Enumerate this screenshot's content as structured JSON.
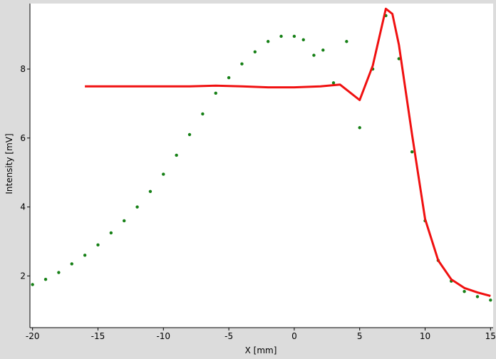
{
  "chart_data": {
    "type": "scatter",
    "title": "",
    "xlabel": "X [mm]",
    "ylabel": "Intensity [mV]",
    "xlim": [
      -20.2,
      15.2
    ],
    "ylim": [
      0.5,
      9.9
    ],
    "x_ticks": [
      -20,
      -15,
      -10,
      -5,
      0,
      5,
      10,
      15
    ],
    "y_ticks": [
      2,
      4,
      6,
      8
    ],
    "grid": false,
    "legend": "none",
    "series": [
      {
        "color": "#168016",
        "style": "dotted",
        "points": [
          [
            -20.0,
            1.75
          ],
          [
            -19.0,
            1.9
          ],
          [
            -18.0,
            2.1
          ],
          [
            -17.0,
            2.35
          ],
          [
            -16.0,
            2.6
          ],
          [
            -15.0,
            2.9
          ],
          [
            -14.0,
            3.25
          ],
          [
            -13.0,
            3.6
          ],
          [
            -12.0,
            4.0
          ],
          [
            -11.0,
            4.45
          ],
          [
            -10.0,
            4.95
          ],
          [
            -9.0,
            5.5
          ],
          [
            -8.0,
            6.1
          ],
          [
            -7.0,
            6.7
          ],
          [
            -6.0,
            7.3
          ],
          [
            -5.0,
            7.75
          ],
          [
            -4.0,
            8.15
          ],
          [
            -3.0,
            8.5
          ],
          [
            -2.0,
            8.8
          ],
          [
            -1.0,
            8.95
          ],
          [
            0.0,
            8.95
          ],
          [
            0.7,
            8.85
          ],
          [
            1.5,
            8.4
          ],
          [
            2.2,
            8.55
          ],
          [
            3.0,
            7.6
          ],
          [
            4.0,
            8.8
          ],
          [
            5.0,
            6.3
          ],
          [
            6.0,
            8.0
          ],
          [
            7.0,
            9.55
          ],
          [
            8.0,
            8.3
          ],
          [
            9.0,
            5.6
          ],
          [
            10.0,
            3.6
          ],
          [
            11.0,
            2.45
          ],
          [
            12.0,
            1.85
          ],
          [
            13.0,
            1.55
          ],
          [
            14.0,
            1.4
          ],
          [
            15.0,
            1.3
          ]
        ]
      },
      {
        "color": "#f01010",
        "style": "solid",
        "points": [
          [
            -16.0,
            7.5
          ],
          [
            -12.0,
            7.5
          ],
          [
            -8.0,
            7.5
          ],
          [
            -6.0,
            7.52
          ],
          [
            -4.0,
            7.5
          ],
          [
            -2.0,
            7.47
          ],
          [
            0.0,
            7.47
          ],
          [
            2.0,
            7.5
          ],
          [
            3.5,
            7.55
          ],
          [
            5.0,
            7.1
          ],
          [
            6.0,
            8.1
          ],
          [
            7.0,
            9.75
          ],
          [
            7.5,
            9.6
          ],
          [
            8.0,
            8.7
          ],
          [
            9.0,
            6.1
          ],
          [
            10.0,
            3.65
          ],
          [
            11.0,
            2.45
          ],
          [
            12.0,
            1.9
          ],
          [
            13.0,
            1.65
          ],
          [
            14.0,
            1.52
          ],
          [
            15.0,
            1.42
          ]
        ]
      }
    ]
  }
}
